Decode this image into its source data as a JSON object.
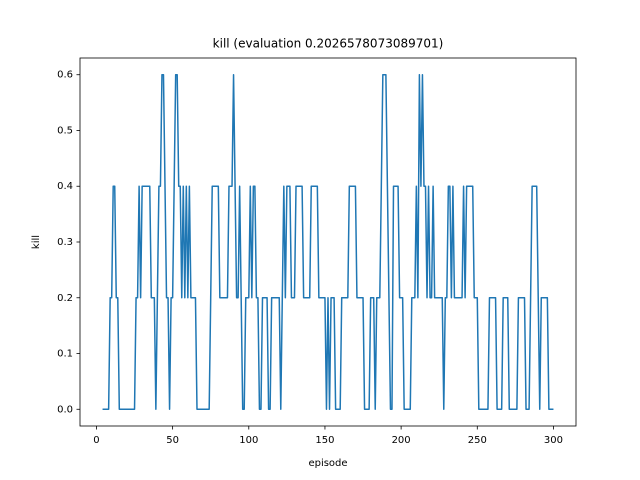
{
  "chart_data": {
    "type": "line",
    "title": "kill (evaluation 0.2026578073089701)",
    "x_label": "episode",
    "y_label": "kill",
    "x": [
      4,
      5,
      6,
      7,
      8,
      9,
      10,
      11,
      12,
      13,
      14,
      15,
      16,
      17,
      18,
      19,
      20,
      21,
      22,
      23,
      24,
      25,
      26,
      27,
      28,
      29,
      30,
      31,
      32,
      33,
      34,
      35,
      36,
      37,
      38,
      39,
      40,
      41,
      42,
      43,
      44,
      45,
      46,
      47,
      48,
      49,
      50,
      51,
      52,
      53,
      54,
      55,
      56,
      57,
      58,
      59,
      60,
      61,
      62,
      63,
      64,
      65,
      66,
      67,
      68,
      69,
      70,
      71,
      72,
      73,
      74,
      75,
      76,
      77,
      78,
      79,
      80,
      81,
      82,
      83,
      84,
      85,
      86,
      87,
      88,
      89,
      90,
      91,
      92,
      93,
      94,
      95,
      96,
      97,
      98,
      99,
      100,
      101,
      102,
      103,
      104,
      105,
      106,
      107,
      108,
      109,
      110,
      111,
      112,
      113,
      114,
      115,
      116,
      117,
      118,
      119,
      120,
      121,
      122,
      123,
      124,
      125,
      126,
      127,
      128,
      129,
      130,
      131,
      132,
      133,
      134,
      135,
      136,
      137,
      138,
      139,
      140,
      141,
      142,
      143,
      144,
      145,
      146,
      147,
      148,
      149,
      150,
      151,
      152,
      153,
      154,
      155,
      156,
      157,
      158,
      159,
      160,
      161,
      162,
      163,
      164,
      165,
      166,
      167,
      168,
      169,
      170,
      171,
      172,
      173,
      174,
      175,
      176,
      177,
      178,
      179,
      180,
      181,
      182,
      183,
      184,
      185,
      186,
      187,
      188,
      189,
      190,
      191,
      192,
      193,
      194,
      195,
      196,
      197,
      198,
      199,
      200,
      201,
      202,
      203,
      204,
      205,
      206,
      207,
      208,
      209,
      210,
      211,
      212,
      213,
      214,
      215,
      216,
      217,
      218,
      219,
      220,
      221,
      222,
      223,
      224,
      225,
      226,
      227,
      228,
      229,
      230,
      231,
      232,
      233,
      234,
      235,
      236,
      237,
      238,
      239,
      240,
      241,
      242,
      243,
      244,
      245,
      246,
      247,
      248,
      249,
      250,
      251,
      252,
      253,
      254,
      255,
      256,
      257,
      258,
      259,
      260,
      261,
      262,
      263,
      264,
      265,
      266,
      267,
      268,
      269,
      270,
      271,
      272,
      273,
      274,
      275,
      276,
      277,
      278,
      279,
      280,
      281,
      282,
      283,
      284,
      285,
      286,
      287,
      288,
      289,
      290,
      291,
      292,
      293,
      294,
      295,
      296,
      297,
      298,
      299,
      300
    ],
    "series": [
      {
        "name": "kill",
        "color": "#1f77b4",
        "values": [
          0,
          0,
          0,
          0,
          0,
          0.2,
          0.2,
          0.4,
          0.4,
          0.2,
          0.2,
          0,
          0,
          0,
          0,
          0,
          0,
          0,
          0,
          0,
          0,
          0,
          0.2,
          0.2,
          0.4,
          0.2,
          0.4,
          0.4,
          0.4,
          0.4,
          0.4,
          0.4,
          0.2,
          0.2,
          0.2,
          0,
          0.2,
          0.4,
          0.4,
          0.6,
          0.6,
          0.4,
          0.2,
          0.2,
          0,
          0.2,
          0.2,
          0.4,
          0.6,
          0.6,
          0.4,
          0.4,
          0.2,
          0.4,
          0.2,
          0.4,
          0.2,
          0.4,
          0.2,
          0.2,
          0.2,
          0.2,
          0,
          0,
          0,
          0,
          0,
          0,
          0,
          0,
          0,
          0.2,
          0.4,
          0.4,
          0.4,
          0.4,
          0.4,
          0.2,
          0.2,
          0.2,
          0.2,
          0.2,
          0.2,
          0.4,
          0.4,
          0.4,
          0.6,
          0.4,
          0.2,
          0.2,
          0.4,
          0.2,
          0,
          0,
          0.2,
          0.2,
          0.2,
          0.4,
          0.2,
          0.4,
          0.4,
          0.2,
          0.2,
          0,
          0,
          0.2,
          0.2,
          0.2,
          0.2,
          0,
          0,
          0.2,
          0.2,
          0.2,
          0.2,
          0.2,
          0.2,
          0,
          0.2,
          0.4,
          0.2,
          0.4,
          0.4,
          0.4,
          0.2,
          0.2,
          0.2,
          0.4,
          0.4,
          0.4,
          0.4,
          0.4,
          0.2,
          0.2,
          0.2,
          0.2,
          0.2,
          0.4,
          0.4,
          0.4,
          0.4,
          0.4,
          0.2,
          0.2,
          0.2,
          0.2,
          0.2,
          0,
          0.2,
          0,
          0.2,
          0.2,
          0.2,
          0,
          0,
          0,
          0,
          0.2,
          0.2,
          0.2,
          0.2,
          0.2,
          0.4,
          0.4,
          0.4,
          0.4,
          0.4,
          0.2,
          0.2,
          0.2,
          0.2,
          0.2,
          0,
          0,
          0,
          0,
          0.2,
          0.2,
          0.2,
          0,
          0.2,
          0.2,
          0.2,
          0.4,
          0.6,
          0.6,
          0.6,
          0.4,
          0.2,
          0,
          0,
          0.4,
          0.4,
          0.4,
          0.4,
          0.2,
          0.2,
          0.2,
          0,
          0,
          0,
          0,
          0,
          0.2,
          0.2,
          0.2,
          0.4,
          0.2,
          0.6,
          0.4,
          0.6,
          0.4,
          0.4,
          0.2,
          0.4,
          0.2,
          0.2,
          0.4,
          0.2,
          0.2,
          0.2,
          0.2,
          0.2,
          0.2,
          0,
          0.2,
          0.2,
          0.4,
          0.4,
          0.2,
          0.4,
          0.2,
          0.2,
          0.2,
          0.2,
          0.2,
          0.2,
          0.4,
          0.2,
          0.4,
          0.4,
          0.4,
          0.4,
          0.4,
          0.2,
          0.2,
          0.2,
          0,
          0,
          0,
          0,
          0,
          0,
          0,
          0.2,
          0.2,
          0.2,
          0.2,
          0.2,
          0,
          0,
          0,
          0,
          0.2,
          0.2,
          0.2,
          0.2,
          0,
          0,
          0,
          0,
          0,
          0,
          0.2,
          0.2,
          0.2,
          0.2,
          0.2,
          0,
          0,
          0,
          0.2,
          0.4,
          0.4,
          0.4,
          0.4,
          0.2,
          0,
          0.2,
          0.2,
          0.2,
          0.2,
          0.2,
          0,
          0,
          0,
          0
        ]
      }
    ],
    "xlim": [
      -10.8,
      314.8
    ],
    "xticks": [
      0,
      50,
      100,
      150,
      200,
      250,
      300
    ],
    "ylim": [
      -0.03,
      0.63
    ],
    "yticks": [
      {
        "value": 0,
        "label": "0.0"
      },
      0.1,
      0.2,
      0.3,
      0.4,
      0.5,
      0.6
    ]
  }
}
